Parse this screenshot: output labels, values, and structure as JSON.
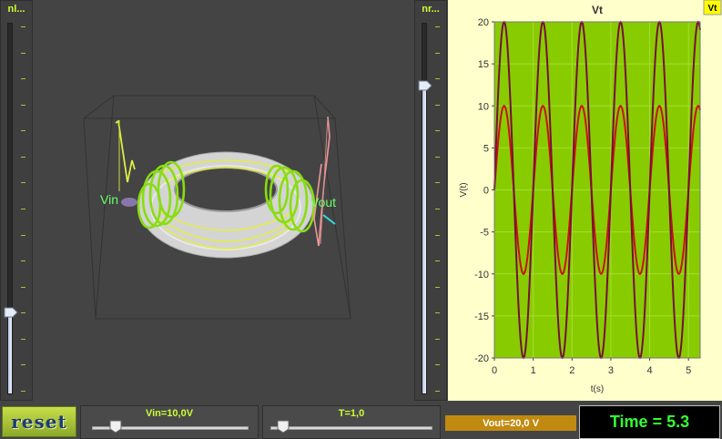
{
  "left_slider": {
    "label": "nl...",
    "level": 0.22
  },
  "right_slider": {
    "label": "nr...",
    "level": 0.83
  },
  "scene": {
    "vin_label": "Vin",
    "vout_label": "Vout"
  },
  "vin_slider": {
    "label": "Vin=10,0V",
    "level": 0.12
  },
  "t_slider": {
    "label": "T=1,0",
    "level": 0.04
  },
  "vout_display": "Vout=20,0 V",
  "time_display": "Time = 5.3",
  "reset_label": "reset",
  "colors": {
    "plot_bg": "#88cc00",
    "frame_bg": "#ffffcc",
    "series_vin": "#cc1111",
    "series_vout": "#770f3a",
    "badge_bg": "#ffff00"
  },
  "chart_data": {
    "type": "line",
    "title": "Vt",
    "legend_badge": "Vt",
    "xlabel": "t(s)",
    "ylabel": "V(t)",
    "xlim": [
      0,
      5.3
    ],
    "ylim": [
      -20,
      20
    ],
    "xticks": [
      0,
      1,
      2,
      3,
      4,
      5
    ],
    "yticks": [
      -20,
      -15,
      -10,
      -5,
      0,
      5,
      10,
      15,
      20
    ],
    "grid": true,
    "series": [
      {
        "amplitude": 10,
        "period": 1.0,
        "phase_deg": 0,
        "color": "#cc1111"
      },
      {
        "amplitude": 20,
        "period": 1.0,
        "phase_deg": 0,
        "color": "#770f3a"
      }
    ]
  }
}
